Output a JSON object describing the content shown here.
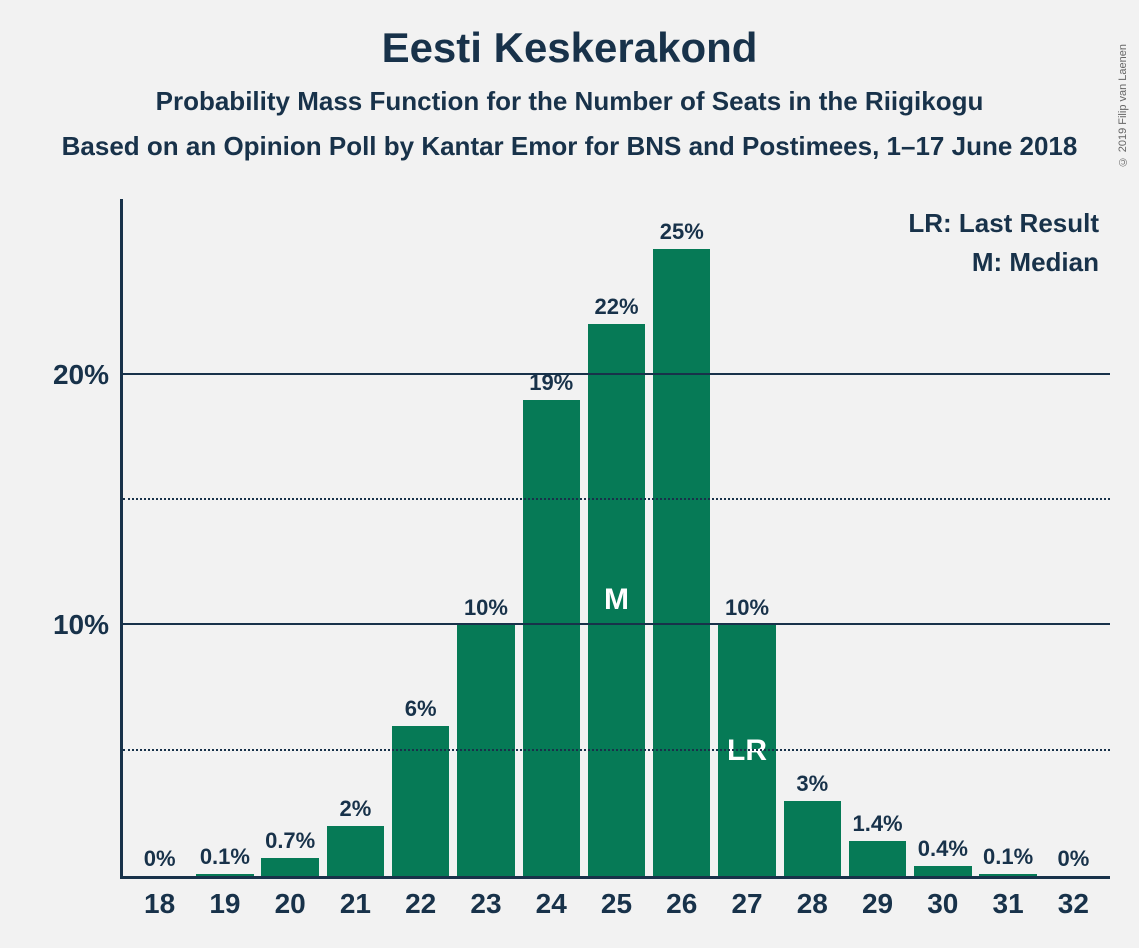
{
  "chart": {
    "type": "bar",
    "title": "Eesti Keskerakond",
    "subtitle1": "Probability Mass Function for the Number of Seats in the Riigikogu",
    "subtitle2": "Based on an Opinion Poll by Kantar Emor for BNS and Postimees, 1–17 June 2018",
    "copyright": "© 2019 Filip van Laenen",
    "legend": {
      "lr": "LR: Last Result",
      "m": "M: Median"
    },
    "bar_color": "#067a56",
    "background_color": "#f2f2f2",
    "text_color": "#18324a",
    "y_axis": {
      "max": 27,
      "ticks": [
        {
          "value": 5,
          "label": "",
          "style": "dotted"
        },
        {
          "value": 10,
          "label": "10%",
          "style": "solid"
        },
        {
          "value": 15,
          "label": "",
          "style": "dotted"
        },
        {
          "value": 20,
          "label": "20%",
          "style": "solid"
        }
      ]
    },
    "bars": [
      {
        "x": "18",
        "value": 0,
        "label": "0%",
        "inner": ""
      },
      {
        "x": "19",
        "value": 0.1,
        "label": "0.1%",
        "inner": ""
      },
      {
        "x": "20",
        "value": 0.7,
        "label": "0.7%",
        "inner": ""
      },
      {
        "x": "21",
        "value": 2,
        "label": "2%",
        "inner": ""
      },
      {
        "x": "22",
        "value": 6,
        "label": "6%",
        "inner": ""
      },
      {
        "x": "23",
        "value": 10,
        "label": "10%",
        "inner": ""
      },
      {
        "x": "24",
        "value": 19,
        "label": "19%",
        "inner": ""
      },
      {
        "x": "25",
        "value": 22,
        "label": "22%",
        "inner": "M"
      },
      {
        "x": "26",
        "value": 25,
        "label": "25%",
        "inner": ""
      },
      {
        "x": "27",
        "value": 10,
        "label": "10%",
        "inner": "LR"
      },
      {
        "x": "28",
        "value": 3,
        "label": "3%",
        "inner": ""
      },
      {
        "x": "29",
        "value": 1.4,
        "label": "1.4%",
        "inner": ""
      },
      {
        "x": "30",
        "value": 0.4,
        "label": "0.4%",
        "inner": ""
      },
      {
        "x": "31",
        "value": 0.1,
        "label": "0.1%",
        "inner": ""
      },
      {
        "x": "32",
        "value": 0,
        "label": "0%",
        "inner": ""
      }
    ]
  }
}
